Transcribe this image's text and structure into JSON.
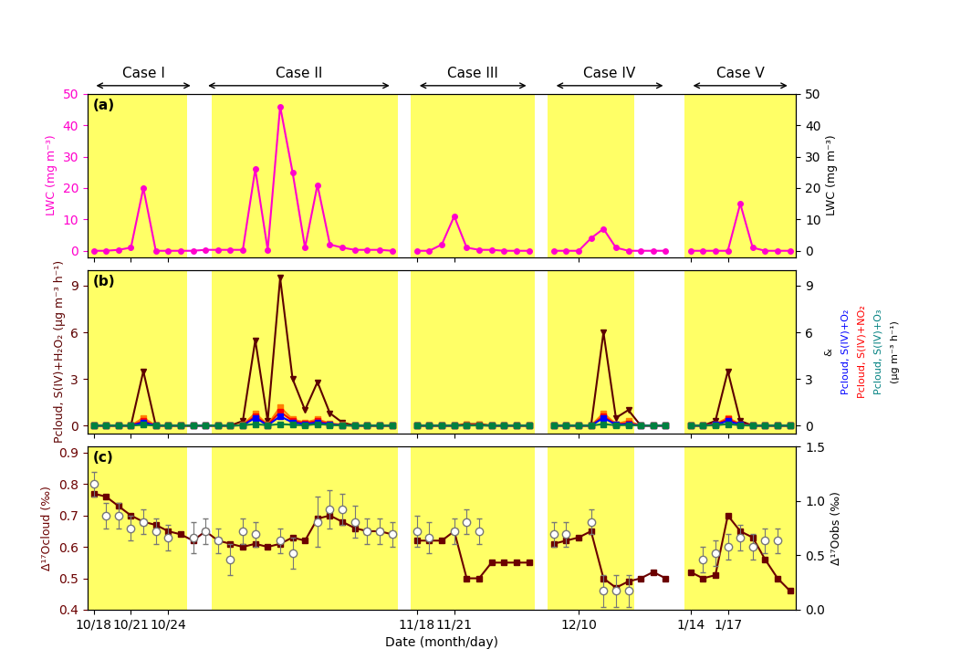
{
  "chart_data": [
    {
      "type": "line",
      "title": "(a)",
      "categories": [
        "10/18",
        null,
        null,
        "10/21",
        null,
        null,
        "10/24",
        null,
        null,
        null,
        null,
        null,
        null,
        null,
        null,
        null,
        null,
        null,
        null,
        null,
        null,
        null,
        null,
        null,
        null,
        null,
        "11/18",
        null,
        null,
        "11/21",
        null,
        null,
        null,
        null,
        null,
        null,
        null,
        null,
        null,
        "12/10",
        null,
        null,
        null,
        null,
        null,
        null,
        null,
        null,
        "1/14",
        null,
        null,
        "1/17",
        null,
        null,
        null,
        null,
        null
      ],
      "shaded": {
        "color": "#FFFF66",
        "values": [
          true,
          true,
          true,
          true,
          true,
          true,
          true,
          true,
          false,
          false,
          true,
          true,
          true,
          true,
          true,
          true,
          true,
          true,
          true,
          true,
          true,
          true,
          true,
          true,
          true,
          false,
          true,
          true,
          true,
          true,
          true,
          true,
          true,
          true,
          true,
          true,
          false,
          true,
          true,
          true,
          true,
          true,
          true,
          true,
          false,
          false,
          false,
          false,
          true,
          true,
          true,
          true,
          true,
          true,
          true,
          true,
          true
        ]
      },
      "series": [
        {
          "color": "#FF00CC",
          "marker": "circle",
          "values": [
            0.0,
            0.0,
            0.3,
            1.0,
            20.0,
            0.0,
            0.0,
            0.0,
            0.0,
            0.3,
            0.3,
            0.3,
            0.3,
            26.0,
            0.3,
            46.0,
            25.0,
            1.0,
            21.0,
            2.0,
            1.0,
            0.3,
            0.3,
            0.3,
            0.0,
            null,
            0.0,
            0.0,
            2.0,
            11.0,
            1.0,
            0.3,
            0.3,
            0.0,
            0.0,
            0.0,
            null,
            0.0,
            0.0,
            0.0,
            4.0,
            7.0,
            1.0,
            0.0,
            0.0,
            0.0,
            0.0,
            null,
            0.0,
            0.0,
            0.0,
            0.0,
            15.0,
            1.0,
            0.0,
            0.0,
            0.0
          ]
        }
      ],
      "ylabel": "LWC (mg m⁻³)",
      "ylim": [
        -2,
        50
      ],
      "yticks": [
        0,
        10,
        20,
        30,
        40,
        50
      ],
      "y2label": "LWC (mg m⁻³)",
      "y2lim": [
        -2,
        50
      ],
      "y2ticks": [
        0,
        10,
        20,
        30,
        40,
        50
      ],
      "tick_labels": "y",
      "spans": [
        {
          "text": "Case I",
          "from": 0,
          "to": 8
        },
        {
          "text": "Case II",
          "from": 9,
          "to": 24
        },
        {
          "text": "Case III",
          "from": 26,
          "to": 35
        },
        {
          "text": "Case IV",
          "from": 37,
          "to": 46
        },
        {
          "text": "Case V",
          "from": 48,
          "to": 56
        }
      ]
    },
    {
      "type": "line",
      "title": "(b)",
      "categories": [
        "10/18",
        null,
        null,
        "10/21",
        null,
        null,
        "10/24",
        null,
        null,
        null,
        null,
        null,
        null,
        null,
        null,
        null,
        null,
        null,
        null,
        null,
        null,
        null,
        null,
        null,
        null,
        null,
        "11/18",
        null,
        null,
        "11/21",
        null,
        null,
        null,
        null,
        null,
        null,
        null,
        null,
        null,
        "12/10",
        null,
        null,
        null,
        null,
        null,
        null,
        null,
        null,
        "1/14",
        null,
        null,
        "1/17",
        null,
        null,
        null,
        null,
        null
      ],
      "shaded": {
        "color": "#FFFF66",
        "values": [
          true,
          true,
          true,
          true,
          true,
          true,
          true,
          true,
          false,
          false,
          true,
          true,
          true,
          true,
          true,
          true,
          true,
          true,
          true,
          true,
          true,
          true,
          true,
          true,
          true,
          false,
          true,
          true,
          true,
          true,
          true,
          true,
          true,
          true,
          true,
          true,
          false,
          true,
          true,
          true,
          true,
          true,
          true,
          true,
          false,
          false,
          false,
          false,
          true,
          true,
          true,
          true,
          true,
          true,
          true,
          true,
          true
        ]
      },
      "series": [
        {
          "color": "#5C0000",
          "marker": "triangle_down",
          "values": [
            0.0,
            0.0,
            0.0,
            0.0,
            3.5,
            0.0,
            0.0,
            0.0,
            0.0,
            0.0,
            0.0,
            0.0,
            0.3,
            5.5,
            0.3,
            9.5,
            3.0,
            1.0,
            2.8,
            0.8,
            0.2,
            0.0,
            0.0,
            0.0,
            0.0,
            null,
            0.0,
            0.0,
            0.0,
            0.0,
            0.1,
            0.1,
            0.0,
            0.0,
            0.0,
            0.0,
            null,
            0.0,
            0.0,
            0.0,
            0.0,
            6.0,
            0.5,
            1.0,
            0.0,
            0.0,
            0.0,
            null,
            0.0,
            0.0,
            0.3,
            3.5,
            0.3,
            0.0,
            0.0,
            0.0,
            0.0
          ]
        },
        {
          "color": "#FF8000",
          "marker": "square",
          "values": [
            0.0,
            0.0,
            0.0,
            0.0,
            0.5,
            0.0,
            0.0,
            0.0,
            0.0,
            0.0,
            0.0,
            0.0,
            0.05,
            0.8,
            0.05,
            1.2,
            0.4,
            0.2,
            0.4,
            0.15,
            0.05,
            0.0,
            0.0,
            0.0,
            0.0,
            null,
            0.0,
            0.0,
            0.0,
            0.0,
            0.05,
            0.05,
            0.0,
            0.0,
            0.0,
            0.0,
            null,
            0.0,
            0.0,
            0.0,
            0.0,
            0.8,
            0.1,
            0.3,
            0.0,
            0.0,
            0.0,
            null,
            0.0,
            0.0,
            0.1,
            0.5,
            0.1,
            0.0,
            0.0,
            0.0,
            0.0
          ]
        },
        {
          "color": "#FF0000",
          "marker": "square",
          "values": [
            0.0,
            0.0,
            0.0,
            0.0,
            0.3,
            0.0,
            0.0,
            0.0,
            0.0,
            0.0,
            0.0,
            0.0,
            0.03,
            0.6,
            0.03,
            0.9,
            0.3,
            0.15,
            0.3,
            0.1,
            0.03,
            0.0,
            0.0,
            0.0,
            0.0,
            null,
            0.0,
            0.0,
            0.0,
            0.0,
            0.03,
            0.03,
            0.0,
            0.0,
            0.0,
            0.0,
            null,
            0.0,
            0.0,
            0.0,
            0.0,
            0.6,
            0.08,
            0.15,
            0.0,
            0.0,
            0.0,
            null,
            0.0,
            0.0,
            0.08,
            0.4,
            0.08,
            0.0,
            0.0,
            0.0,
            0.0
          ]
        },
        {
          "color": "#0000FF",
          "marker": "square",
          "values": [
            0.0,
            0.0,
            0.0,
            0.0,
            0.2,
            0.0,
            0.0,
            0.0,
            0.0,
            0.0,
            0.0,
            0.0,
            0.02,
            0.5,
            0.02,
            0.6,
            0.2,
            0.1,
            0.2,
            0.08,
            0.02,
            0.0,
            0.0,
            0.0,
            0.0,
            null,
            0.0,
            0.0,
            0.0,
            0.0,
            0.02,
            0.02,
            0.0,
            0.0,
            0.0,
            0.0,
            null,
            0.0,
            0.0,
            0.0,
            0.0,
            0.5,
            0.06,
            0.1,
            0.0,
            0.0,
            0.0,
            null,
            0.0,
            0.0,
            0.06,
            0.3,
            0.06,
            0.0,
            0.0,
            0.0,
            0.0
          ]
        },
        {
          "color": "#008040",
          "marker": "square",
          "values": [
            0.0,
            0.0,
            0.0,
            0.0,
            0.05,
            0.0,
            0.0,
            0.0,
            0.0,
            0.0,
            0.0,
            0.0,
            0.02,
            0.1,
            0.02,
            0.1,
            0.05,
            0.02,
            0.1,
            0.04,
            0.01,
            0.0,
            0.0,
            0.0,
            0.0,
            null,
            0.0,
            0.0,
            0.0,
            0.0,
            0.01,
            0.01,
            0.0,
            0.0,
            0.0,
            0.0,
            null,
            0.0,
            0.0,
            0.0,
            0.0,
            0.1,
            0.02,
            0.04,
            0.0,
            0.0,
            0.0,
            null,
            0.0,
            0.0,
            0.02,
            0.1,
            0.02,
            0.0,
            0.0,
            0.0,
            0.0
          ]
        }
      ],
      "ylabel": "Pcloud, S(IV)+H₂O₂ (μg m⁻³ h⁻¹)",
      "ylim": [
        -0.5,
        10
      ],
      "yticks": [
        0,
        3,
        6,
        9
      ],
      "y2lim": [
        -0.5,
        10
      ],
      "y2ticks": [
        0,
        3,
        6,
        9
      ],
      "tick_labels": "y",
      "annotations": [
        {
          "text": "&",
          "color": "#000000"
        },
        {
          "text": "Pcloud, S(IV)+O₂",
          "color": "#0000FF"
        },
        {
          "text": "Pcloud, S(IV)+NO₂",
          "color": "#FF0000"
        },
        {
          "text": "Pcloud, S(IV)+O₃",
          "color": "#008080"
        },
        {
          "text": "(μg m⁻³ h⁻¹)",
          "color": "#000000"
        }
      ]
    },
    {
      "type": "line",
      "title": "(c)",
      "categories": [
        "10/18",
        null,
        null,
        "10/21",
        null,
        null,
        "10/24",
        null,
        null,
        null,
        null,
        null,
        null,
        null,
        null,
        null,
        null,
        null,
        null,
        null,
        null,
        null,
        null,
        null,
        null,
        null,
        "11/18",
        null,
        null,
        "11/21",
        null,
        null,
        null,
        null,
        null,
        null,
        null,
        null,
        null,
        "12/10",
        null,
        null,
        null,
        null,
        null,
        null,
        null,
        null,
        "1/14",
        null,
        null,
        "1/17",
        null,
        null,
        null,
        null,
        null
      ],
      "shaded": {
        "color": "#FFFF66",
        "values": [
          true,
          true,
          true,
          true,
          true,
          true,
          true,
          true,
          false,
          false,
          true,
          true,
          true,
          true,
          true,
          true,
          true,
          true,
          true,
          true,
          true,
          true,
          true,
          true,
          true,
          false,
          true,
          true,
          true,
          true,
          true,
          true,
          true,
          true,
          true,
          true,
          false,
          true,
          true,
          true,
          true,
          true,
          true,
          true,
          false,
          false,
          false,
          false,
          true,
          true,
          true,
          true,
          true,
          true,
          true,
          true,
          true
        ]
      },
      "series": [
        {
          "color": "#6B0000",
          "marker": "square",
          "values": [
            0.77,
            0.76,
            0.73,
            0.7,
            0.68,
            0.67,
            0.65,
            0.64,
            0.62,
            0.65,
            0.62,
            0.61,
            0.6,
            0.61,
            0.6,
            0.61,
            0.63,
            0.62,
            0.69,
            0.7,
            0.68,
            0.66,
            0.65,
            0.65,
            0.64,
            null,
            0.62,
            0.62,
            0.62,
            0.65,
            0.5,
            0.5,
            0.55,
            0.55,
            0.55,
            0.55,
            null,
            0.61,
            0.62,
            0.63,
            0.65,
            0.5,
            0.47,
            0.49,
            0.5,
            0.52,
            0.5,
            null,
            0.52,
            0.5,
            0.51,
            0.7,
            0.65,
            0.63,
            0.56,
            0.5,
            0.46
          ]
        },
        {
          "type": "scatter",
          "color": "#777777",
          "marker": "circle",
          "values": [
            0.8,
            0.7,
            0.7,
            0.66,
            0.68,
            0.65,
            0.63,
            null,
            0.63,
            0.65,
            0.62,
            0.56,
            0.65,
            0.64,
            null,
            0.62,
            0.58,
            null,
            0.68,
            0.72,
            0.72,
            0.68,
            0.65,
            0.65,
            0.64,
            null,
            0.65,
            0.63,
            null,
            0.65,
            0.68,
            0.65,
            null,
            null,
            null,
            null,
            null,
            0.64,
            0.64,
            null,
            0.68,
            0.46,
            0.46,
            0.46,
            null,
            null,
            null,
            null,
            null,
            0.56,
            0.58,
            0.6,
            0.63,
            0.6,
            0.62,
            0.62,
            null
          ],
          "error": [
            0.04,
            0.04,
            0.04,
            0.04,
            0.04,
            0.04,
            0.04,
            null,
            0.05,
            0.04,
            0.04,
            0.05,
            0.04,
            0.04,
            null,
            0.04,
            0.05,
            null,
            0.08,
            0.06,
            0.05,
            0.05,
            0.04,
            0.04,
            0.04,
            null,
            0.05,
            0.05,
            null,
            0.04,
            0.04,
            0.04,
            null,
            null,
            null,
            null,
            null,
            0.04,
            0.04,
            null,
            0.04,
            0.05,
            0.05,
            0.05,
            null,
            null,
            null,
            null,
            null,
            0.04,
            0.04,
            0.04,
            0.04,
            0.04,
            0.04,
            0.04,
            null
          ]
        }
      ],
      "xlabel": "Date (month/day)",
      "ylabel": "Δ¹⁷Ocloud (‰)",
      "ylim": [
        0.4,
        0.92
      ],
      "yticks": [
        0.4,
        0.5,
        0.6,
        0.7,
        0.8,
        0.9
      ],
      "y2label": "Δ¹⁷Oobs (‰)",
      "y2lim": [
        0.0,
        1.5
      ],
      "y2ticks": [
        0.0,
        0.5,
        1.0,
        1.5
      ]
    }
  ]
}
